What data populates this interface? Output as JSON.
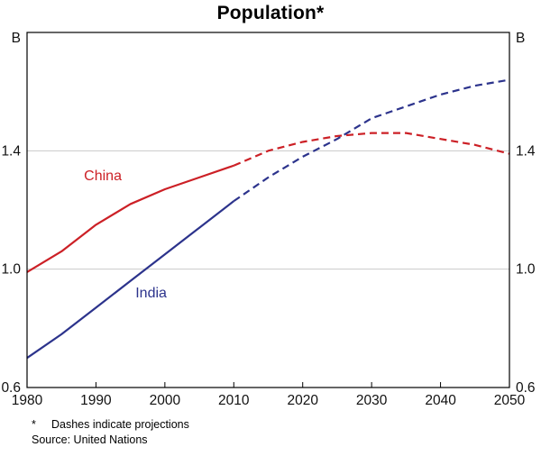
{
  "chart_data": {
    "type": "line",
    "title": "Population*",
    "unit": "B",
    "xlim": [
      1980,
      2050
    ],
    "ylim": [
      0.6,
      1.8
    ],
    "xticks": [
      1980,
      1990,
      2000,
      2010,
      2020,
      2030,
      2040,
      2050
    ],
    "yticks": [
      0.6,
      1.0,
      1.4
    ],
    "gridlines": [
      1.0,
      1.4
    ],
    "grid_color": "#c9c9c9",
    "axis_color": "#000000",
    "projection_start": 2010,
    "projection_note": "Dashed segments are projections",
    "x": [
      1980,
      1985,
      1990,
      1995,
      2000,
      2005,
      2010,
      2015,
      2020,
      2025,
      2030,
      2035,
      2040,
      2045,
      2050
    ],
    "series": [
      {
        "name": "China",
        "color": "#cc2026",
        "values": [
          0.99,
          1.06,
          1.15,
          1.22,
          1.27,
          1.31,
          1.35,
          1.4,
          1.43,
          1.45,
          1.46,
          1.46,
          1.44,
          1.42,
          1.39
        ],
        "label": {
          "year": 1991,
          "value": 1.3
        }
      },
      {
        "name": "India",
        "color": "#2c338c",
        "values": [
          0.7,
          0.78,
          0.87,
          0.96,
          1.05,
          1.14,
          1.23,
          1.31,
          1.38,
          1.44,
          1.51,
          1.55,
          1.59,
          1.62,
          1.64
        ],
        "label": {
          "year": 1998,
          "value": 0.905
        }
      }
    ],
    "legend_position": "inline-labels"
  },
  "footnotes": {
    "note_marker": "*",
    "note": "Dashes indicate projections",
    "source": "Source: United Nations"
  }
}
